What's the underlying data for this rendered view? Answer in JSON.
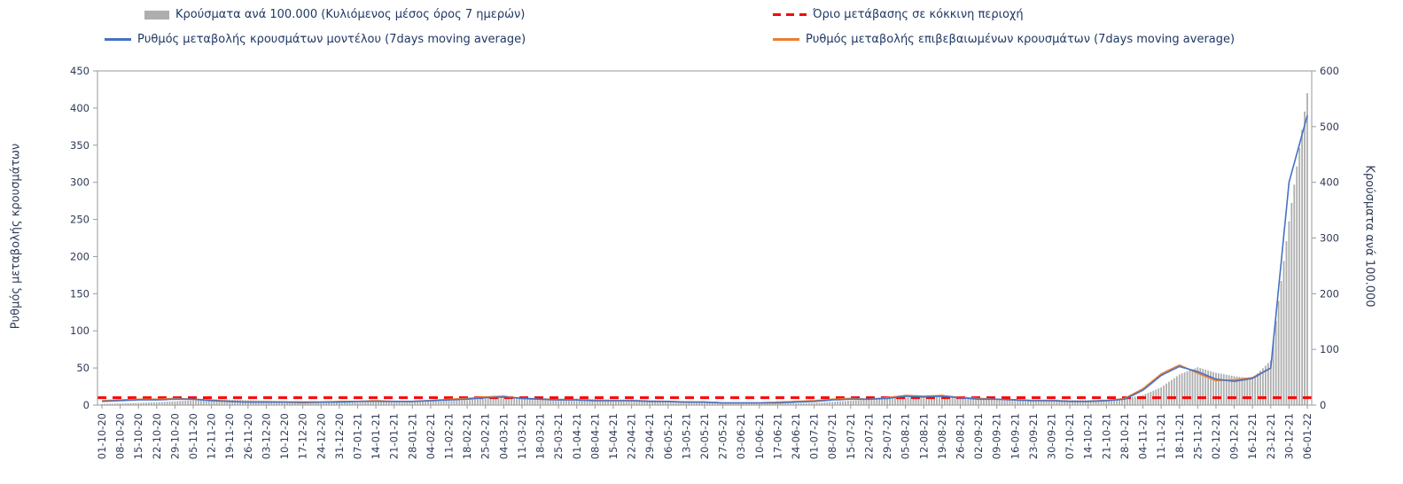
{
  "legend": {
    "bars": "Κρούσματα ανά 100.000 (Κυλιόμενος μέσος όρος 7 ημερών)",
    "threshold": "Όριο μετάβασης σε κόκκινη περιοχή",
    "model": "Ρυθμός μεταβολής κρουσμάτων μοντέλου (7days moving average)",
    "confirmed": "Ρυθμός μεταβολής επιβεβαιωμένων κρουσμάτων (7days moving average)"
  },
  "axes": {
    "left_title": "Ρυθμός μεταβολής κρουσμάτων",
    "right_title": "Κρούσματα ανά 100.000",
    "left_ticks": [
      0,
      50,
      100,
      150,
      200,
      250,
      300,
      350,
      400,
      450
    ],
    "right_ticks": [
      0,
      100,
      200,
      300,
      400,
      500,
      600
    ],
    "left_max": 450,
    "right_max": 600
  },
  "colors": {
    "bars": "#aeaeae",
    "model": "#4472c4",
    "confirmed": "#ed7d31",
    "threshold": "#ff0000",
    "spine": "#9a9a9a",
    "tick_text": "#2e3a55",
    "legend_text": "#1f3864"
  },
  "chart_data": {
    "type": "bar+line",
    "title": "",
    "xlabel": "",
    "ylabel_left": "Ρυθμός μεταβολής κρουσμάτων",
    "ylabel_right": "Κρούσματα ανά 100.000",
    "legend_position": "top",
    "ylim_left": [
      0,
      450
    ],
    "ylim_right": [
      0,
      600
    ],
    "x_weekly_labels": [
      "01-10-20",
      "08-10-20",
      "15-10-20",
      "22-10-20",
      "29-10-20",
      "05-11-20",
      "12-11-20",
      "19-11-20",
      "26-11-20",
      "03-12-20",
      "10-12-20",
      "17-12-20",
      "24-12-20",
      "31-12-20",
      "07-01-21",
      "14-01-21",
      "21-01-21",
      "28-01-21",
      "04-02-21",
      "11-02-21",
      "18-02-21",
      "25-02-21",
      "04-03-21",
      "11-03-21",
      "18-03-21",
      "25-03-21",
      "01-04-21",
      "08-04-21",
      "15-04-21",
      "22-04-21",
      "29-04-21",
      "06-05-21",
      "13-05-21",
      "20-05-21",
      "27-05-21",
      "03-06-21",
      "10-06-21",
      "17-06-21",
      "24-06-21",
      "01-07-21",
      "08-07-21",
      "15-07-21",
      "22-07-21",
      "29-07-21",
      "05-08-21",
      "12-08-21",
      "19-08-21",
      "26-08-21",
      "02-09-21",
      "09-09-21",
      "16-09-21",
      "23-09-21",
      "30-09-21",
      "07-10-21",
      "14-10-21",
      "21-10-21",
      "28-10-21",
      "04-11-21",
      "11-11-21",
      "18-11-21",
      "25-11-21",
      "02-12-21",
      "09-12-21",
      "16-12-21",
      "23-12-21",
      "30-12-21",
      "06-01-22"
    ],
    "series": [
      {
        "id": "cases",
        "name": "Κρούσματα ανά 100.000 (Κυλιόμενος μέσος όρος 7 ημερών)",
        "type": "bar",
        "axis": "right",
        "color": "#aeaeae",
        "values": [
          2,
          3,
          4,
          5,
          7,
          9,
          10,
          10,
          9,
          8,
          7,
          6,
          5,
          5,
          5,
          5,
          6,
          6,
          7,
          8,
          9,
          12,
          14,
          14,
          13,
          12,
          12,
          11,
          10,
          10,
          9,
          8,
          7,
          6,
          5,
          4,
          4,
          3,
          3,
          4,
          6,
          8,
          10,
          11,
          14,
          15,
          16,
          15,
          13,
          12,
          11,
          10,
          10,
          9,
          9,
          10,
          12,
          18,
          32,
          55,
          68,
          58,
          52,
          48,
          80,
          330,
          560
        ]
      },
      {
        "id": "model",
        "name": "Ρυθμός μεταβολής κρουσμάτων μοντέλου (7days moving average)",
        "type": "line",
        "axis": "left",
        "color": "#4472c4",
        "values": [
          5,
          6,
          7,
          7,
          8,
          8,
          6,
          5,
          4,
          4,
          4,
          4,
          4,
          4,
          5,
          5,
          5,
          5,
          6,
          7,
          8,
          10,
          11,
          9,
          8,
          7,
          7,
          6,
          6,
          6,
          5,
          5,
          4,
          4,
          3,
          3,
          3,
          3,
          4,
          5,
          7,
          8,
          8,
          9,
          12,
          11,
          12,
          10,
          8,
          8,
          7,
          6,
          6,
          5,
          5,
          6,
          8,
          20,
          40,
          52,
          45,
          35,
          32,
          36,
          50,
          300,
          390
        ]
      },
      {
        "id": "confirmed",
        "name": "Ρυθμός μεταβολής επιβεβαιωμένων κρουσμάτων (7days moving average)",
        "type": "line",
        "axis": "left",
        "color": "#ed7d31",
        "values": [
          6,
          7,
          8,
          8,
          9,
          8,
          7,
          5,
          4,
          4,
          4,
          3,
          4,
          5,
          5,
          6,
          5,
          5,
          6,
          8,
          9,
          11,
          12,
          9,
          8,
          7,
          7,
          6,
          6,
          6,
          5,
          5,
          4,
          4,
          3,
          3,
          3,
          4,
          5,
          6,
          8,
          9,
          8,
          10,
          13,
          12,
          13,
          10,
          9,
          8,
          7,
          6,
          6,
          5,
          5,
          6,
          9,
          22,
          42,
          54,
          43,
          33,
          34,
          37,
          50,
          null,
          null
        ]
      },
      {
        "id": "threshold",
        "name": "Όριο μετάβασης σε κόκκινη περιοχή",
        "type": "hline",
        "axis": "left",
        "color": "#ff0000",
        "value": 10
      }
    ]
  }
}
